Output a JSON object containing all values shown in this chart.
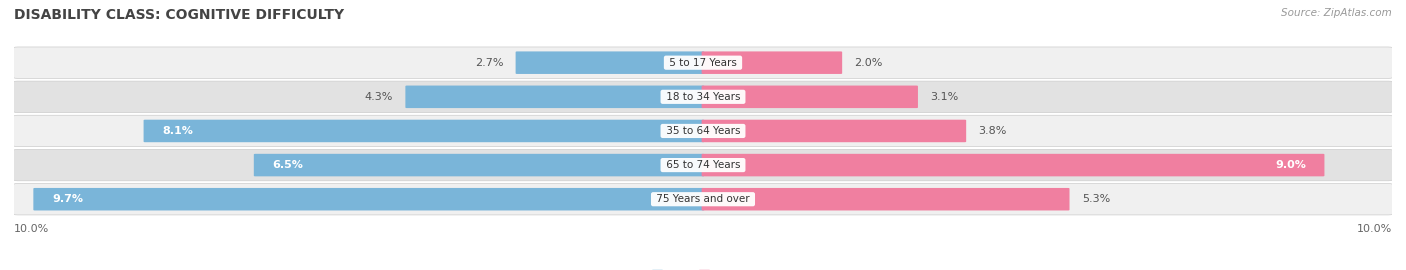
{
  "title": "DISABILITY CLASS: COGNITIVE DIFFICULTY",
  "source": "Source: ZipAtlas.com",
  "categories": [
    "5 to 17 Years",
    "18 to 34 Years",
    "35 to 64 Years",
    "65 to 74 Years",
    "75 Years and over"
  ],
  "male_values": [
    2.7,
    4.3,
    8.1,
    6.5,
    9.7
  ],
  "female_values": [
    2.0,
    3.1,
    3.8,
    9.0,
    5.3
  ],
  "male_color": "#7ab5d9",
  "female_color": "#f07fa0",
  "row_bg_light": "#f0f0f0",
  "row_bg_dark": "#e2e2e2",
  "x_max": 10.0,
  "title_fontsize": 10,
  "bar_height": 0.62,
  "label_fontsize": 8,
  "category_fontsize": 7.5,
  "legend_fontsize": 8,
  "background_color": "#ffffff"
}
